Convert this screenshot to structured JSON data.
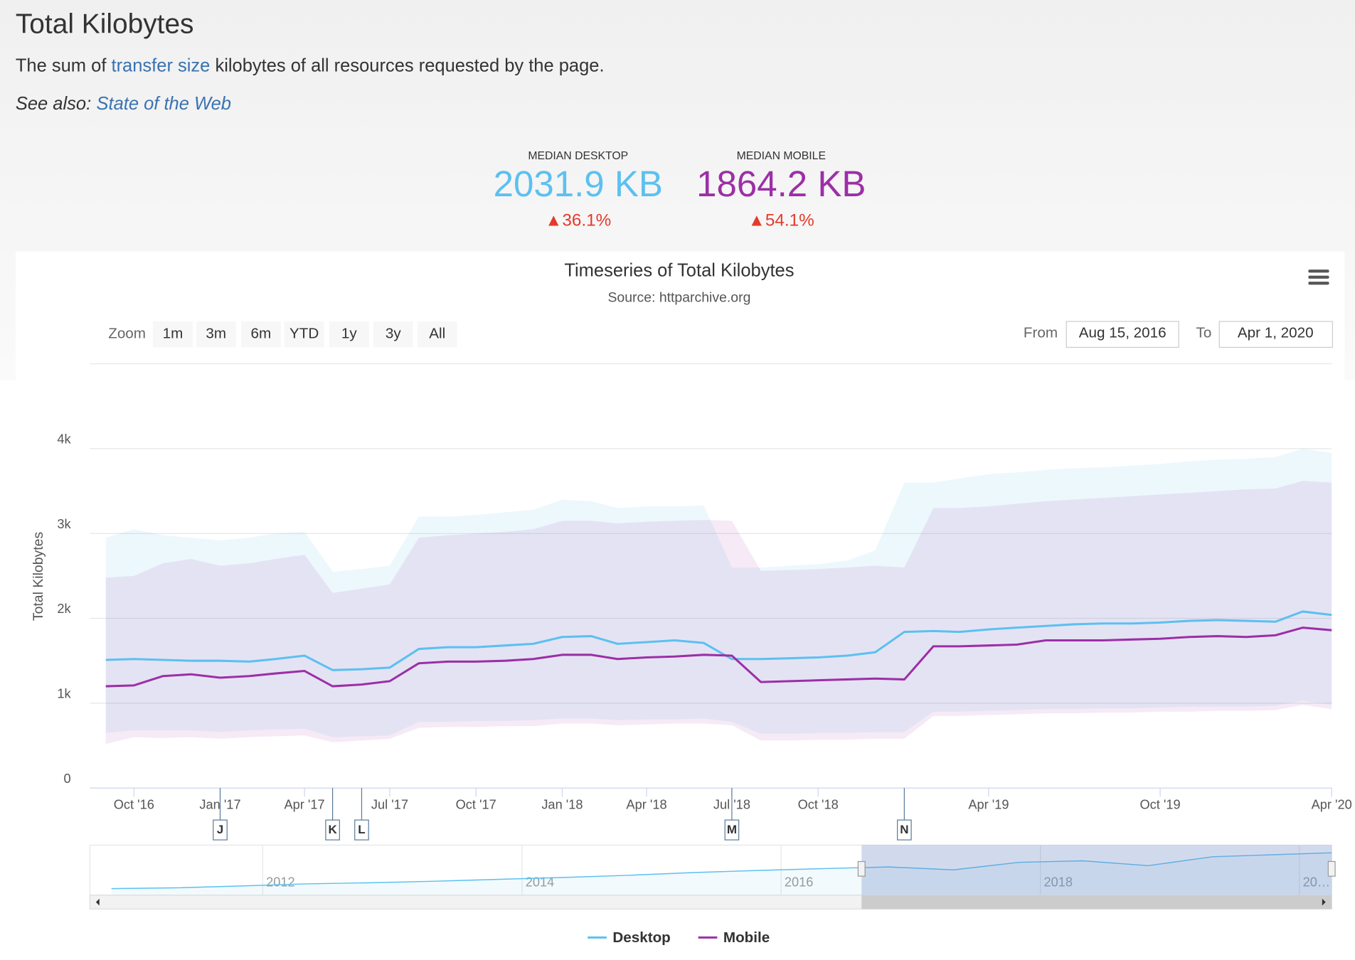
{
  "header": {
    "title": "Total Kilobytes",
    "description": {
      "before": "The sum of ",
      "link": "transfer size",
      "after": " kilobytes of all resources requested by the page."
    },
    "see_also": {
      "label": "See also:",
      "link": "State of the Web"
    }
  },
  "stats": [
    {
      "label": "MEDIAN DESKTOP",
      "value": "2031.9 KB",
      "change": "▲36.1%"
    },
    {
      "label": "MEDIAN MOBILE",
      "value": "1864.2 KB",
      "change": "▲54.1%"
    }
  ],
  "chart_data": {
    "type": "line",
    "title": "Timeseries of Total Kilobytes",
    "subtitle": "Source: httparchive.org",
    "menu": "≡",
    "range_selector": {
      "label": "Zoom",
      "buttons": [
        "1m",
        "3m",
        "6m",
        "YTD",
        "1y",
        "3y",
        "All"
      ],
      "from_label": "From",
      "from": "Aug 15, 2016",
      "to_label": "To",
      "to": "Apr 1, 2020"
    },
    "y_label": "Total Kilobytes",
    "xlim": [
      "2016-08-15",
      "2020-04-01"
    ],
    "xticks": [
      {
        "value": "2016-10",
        "label": "Oct '16"
      },
      {
        "value": "2017-01",
        "label": "Jan '17"
      },
      {
        "value": "2017-04",
        "label": "Apr '17"
      },
      {
        "value": "2017-07",
        "label": "Jul '17"
      },
      {
        "value": "2017-10",
        "label": "Oct '17"
      },
      {
        "value": "2018-01",
        "label": "Jan '18"
      },
      {
        "value": "2018-04",
        "label": "Apr '18"
      },
      {
        "value": "2018-07",
        "label": "Jul '18"
      },
      {
        "value": "2018-10",
        "label": "Oct '18"
      },
      {
        "value": "2019-04",
        "label": "Apr '19"
      },
      {
        "value": "2019-10",
        "label": "Oct '19"
      },
      {
        "value": "2020-04",
        "label": "Apr '20"
      }
    ],
    "ylim": [
      0,
      5000
    ],
    "yticks": [
      0,
      {
        "value": 1000,
        "label": "1k"
      },
      {
        "value": 2000,
        "label": "2k"
      },
      {
        "value": 3000,
        "label": "3k"
      },
      {
        "value": 4000,
        "label": "4k"
      }
    ],
    "grid": true,
    "x": [
      "2016-09",
      "2016-10",
      "2016-11",
      "2016-12",
      "2017-01",
      "2017-02",
      "2017-03",
      "2017-04",
      "2017-05",
      "2017-06",
      "2017-07",
      "2017-08",
      "2017-09",
      "2017-10",
      "2017-11",
      "2017-12",
      "2018-01",
      "2018-02",
      "2018-03",
      "2018-04",
      "2018-05",
      "2018-06",
      "2018-07",
      "2018-08",
      "2018-09",
      "2018-10",
      "2018-11",
      "2018-12",
      "2019-01",
      "2019-02",
      "2019-03",
      "2019-04",
      "2019-05",
      "2019-06",
      "2019-07",
      "2019-08",
      "2019-09",
      "2019-10",
      "2019-11",
      "2019-12",
      "2020-01",
      "2020-02",
      "2020-03",
      "2020-04"
    ],
    "series": [
      {
        "name": "Desktop",
        "color": "#5cc0f0",
        "values": [
          1510,
          1520,
          1510,
          1500,
          1500,
          1490,
          1520,
          1560,
          1390,
          1400,
          1420,
          1640,
          1660,
          1660,
          1680,
          1700,
          1780,
          1790,
          1700,
          1720,
          1740,
          1710,
          1520,
          1520,
          1530,
          1540,
          1560,
          1600,
          1840,
          1850,
          1840,
          1870,
          1890,
          1910,
          1930,
          1940,
          1940,
          1950,
          1970,
          1980,
          1970,
          1960,
          2080,
          2040
        ],
        "low": [
          650,
          680,
          680,
          680,
          660,
          680,
          690,
          700,
          600,
          610,
          620,
          780,
          780,
          790,
          790,
          800,
          820,
          820,
          800,
          810,
          810,
          820,
          780,
          640,
          640,
          650,
          650,
          660,
          660,
          900,
          900,
          910,
          920,
          930,
          930,
          940,
          940,
          950,
          960,
          960,
          960,
          970,
          1030,
          980
        ],
        "high": [
          2950,
          3050,
          2980,
          2950,
          2920,
          2950,
          3000,
          3020,
          2550,
          2580,
          2620,
          3200,
          3200,
          3220,
          3250,
          3280,
          3400,
          3380,
          3300,
          3320,
          3320,
          3330,
          2600,
          2600,
          2620,
          2640,
          2680,
          2800,
          3600,
          3600,
          3650,
          3700,
          3720,
          3750,
          3770,
          3780,
          3800,
          3820,
          3850,
          3870,
          3880,
          3900,
          4000,
          3950
        ]
      },
      {
        "name": "Mobile",
        "color": "#9c2fa6",
        "values": [
          1200,
          1210,
          1320,
          1340,
          1300,
          1320,
          1350,
          1380,
          1200,
          1220,
          1260,
          1470,
          1490,
          1490,
          1500,
          1520,
          1570,
          1570,
          1520,
          1540,
          1550,
          1570,
          1560,
          1250,
          1260,
          1270,
          1280,
          1290,
          1280,
          1670,
          1670,
          1680,
          1690,
          1740,
          1740,
          1740,
          1750,
          1760,
          1780,
          1790,
          1780,
          1800,
          1890,
          1860
        ],
        "low": [
          520,
          600,
          590,
          600,
          580,
          600,
          610,
          620,
          540,
          560,
          580,
          710,
          720,
          720,
          730,
          730,
          760,
          760,
          740,
          750,
          760,
          760,
          740,
          560,
          560,
          570,
          570,
          580,
          580,
          850,
          850,
          860,
          870,
          880,
          880,
          890,
          890,
          900,
          900,
          910,
          910,
          920,
          980,
          930
        ],
        "high": [
          2480,
          2500,
          2650,
          2700,
          2620,
          2650,
          2700,
          2750,
          2300,
          2350,
          2400,
          2950,
          2980,
          3000,
          3020,
          3050,
          3150,
          3150,
          3120,
          3140,
          3150,
          3160,
          3150,
          2560,
          2570,
          2580,
          2600,
          2620,
          2600,
          3300,
          3300,
          3320,
          3350,
          3380,
          3400,
          3420,
          3440,
          3460,
          3480,
          3500,
          3520,
          3530,
          3620,
          3600
        ]
      }
    ],
    "flags": [
      {
        "x": "2017-01",
        "label": "J"
      },
      {
        "x": "2017-05",
        "label": "K"
      },
      {
        "x": "2017-06",
        "label": "L"
      },
      {
        "x": "2018-07",
        "label": "M"
      },
      {
        "x": "2019-01",
        "label": "N"
      }
    ],
    "navigator": {
      "color": "#5cc0f0",
      "xlim": [
        "2010-09",
        "2020-04"
      ],
      "ylim": [
        650,
        2100
      ],
      "xticks": [
        2012,
        2014,
        2016,
        2018,
        {
          "value": 2020,
          "label": "20…"
        }
      ],
      "x": [
        "2010-11",
        "2011-05",
        "2011-11",
        "2012-05",
        "2012-11",
        "2013-05",
        "2013-11",
        "2014-05",
        "2014-11",
        "2015-05",
        "2015-11",
        "2016-05",
        "2016-11",
        "2017-05",
        "2017-11",
        "2018-05",
        "2018-11",
        "2019-05",
        "2019-11",
        "2020-04"
      ],
      "values": [
        700,
        730,
        800,
        880,
        920,
        980,
        1050,
        1120,
        1200,
        1300,
        1380,
        1450,
        1510,
        1400,
        1680,
        1740,
        1560,
        1890,
        1970,
        2040
      ]
    }
  }
}
